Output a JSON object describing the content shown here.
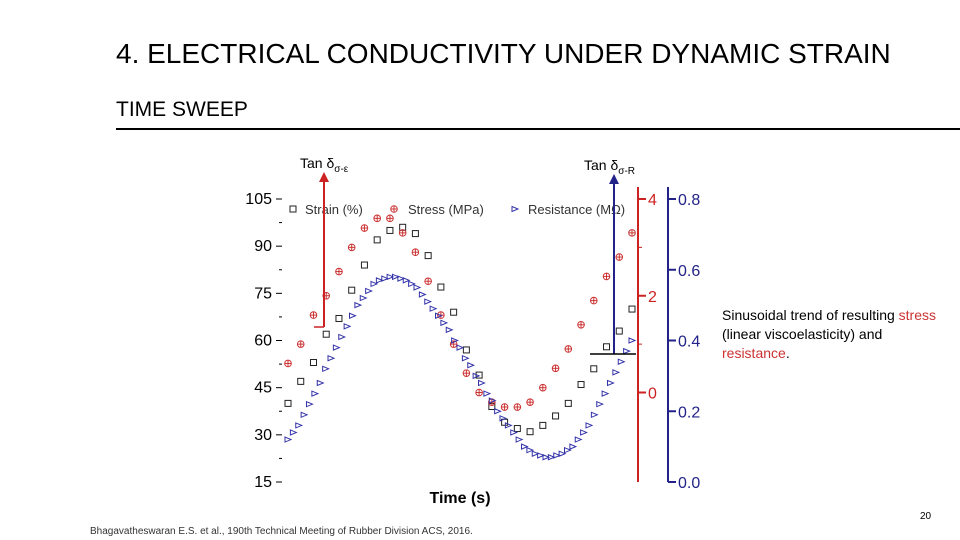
{
  "slide": {
    "title": "4. ELECTRICAL CONDUCTIVITY UNDER DYNAMIC STRAIN",
    "subtitle": "TIME SWEEP",
    "ann_left_main": "Tan δ",
    "ann_left_sub": "σ-ε",
    "ann_right_main": "Tan δ",
    "ann_right_sub": "σ-R",
    "note_pre": "Sinusoidal trend of resulting ",
    "note_red1": "stress",
    "note_mid": " (linear viscoelasticity) and ",
    "note_red2": "resistance",
    "note_post": ".",
    "footer": "Bhagavatheswaran E.S. et al., 190th Technical Meeting of Rubber Division ACS, 2016.",
    "page_number": "20"
  },
  "colors": {
    "strain": "#222222",
    "stress": "#cc3333",
    "resistance": "#3333aa",
    "stress_axis": "#cc2222",
    "resistance_axis": "#222288"
  },
  "chart_data": {
    "type": "scatter",
    "xlabel": "Time (s)",
    "axes": {
      "strain": {
        "ticks": [
          15,
          30,
          45,
          60,
          75,
          90,
          105
        ],
        "range": [
          15,
          105
        ]
      },
      "stress": {
        "ticks": [
          0,
          2,
          4
        ],
        "range": [
          -1.85,
          4
        ]
      },
      "resistance": {
        "ticks": [
          0.0,
          0.2,
          0.4,
          0.6,
          0.8
        ],
        "range": [
          0.0,
          0.8
        ]
      }
    },
    "series": [
      {
        "name": "Strain (%)",
        "marker": "square",
        "axis": "strain",
        "values": [
          40,
          47,
          53,
          62,
          67,
          76,
          84,
          92,
          95,
          96,
          94,
          87,
          77,
          69,
          57,
          49,
          39,
          34,
          32,
          31,
          33,
          36,
          40,
          46,
          51,
          58,
          63,
          70
        ]
      },
      {
        "name": "Stress (MPa)",
        "marker": "circle-plus",
        "axis": "stress",
        "values": [
          0.6,
          1.0,
          1.6,
          2.0,
          2.5,
          3.0,
          3.4,
          3.6,
          3.6,
          3.3,
          2.9,
          2.3,
          1.6,
          1.0,
          0.4,
          0.0,
          -0.2,
          -0.3,
          -0.3,
          -0.2,
          0.1,
          0.5,
          0.9,
          1.4,
          1.9,
          2.4,
          2.8,
          3.3
        ]
      },
      {
        "name": "Resistance (MΩ)",
        "marker": "triangle",
        "axis": "resistance",
        "values": [
          0.12,
          0.14,
          0.16,
          0.19,
          0.22,
          0.25,
          0.28,
          0.32,
          0.35,
          0.38,
          0.41,
          0.44,
          0.47,
          0.5,
          0.52,
          0.54,
          0.56,
          0.57,
          0.575,
          0.58,
          0.58,
          0.575,
          0.57,
          0.56,
          0.55,
          0.53,
          0.51,
          0.49,
          0.47,
          0.45,
          0.43,
          0.4,
          0.38,
          0.35,
          0.33,
          0.3,
          0.28,
          0.25,
          0.23,
          0.2,
          0.18,
          0.16,
          0.14,
          0.12,
          0.1,
          0.09,
          0.08,
          0.075,
          0.07,
          0.07,
          0.075,
          0.08,
          0.09,
          0.1,
          0.12,
          0.14,
          0.16,
          0.19,
          0.22,
          0.25,
          0.28,
          0.31,
          0.34,
          0.37,
          0.4
        ]
      }
    ]
  }
}
